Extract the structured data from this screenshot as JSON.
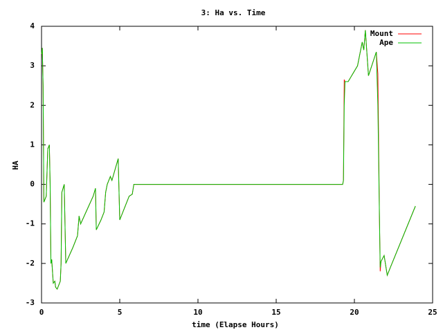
{
  "chart_data": {
    "type": "line",
    "title": "3: Ha vs. Time",
    "x_label": "time (Elapse Hours)",
    "y_label": "HA",
    "x": [
      0,
      0.05,
      0.1,
      0.15,
      0.3,
      0.4,
      0.5,
      0.55,
      0.6,
      0.65,
      0.75,
      0.85,
      0.9,
      1.0,
      1.2,
      1.25,
      1.3,
      1.45,
      1.55,
      2.0,
      2.3,
      2.4,
      2.5,
      3.3,
      3.45,
      3.5,
      3.8,
      4.0,
      4.1,
      4.2,
      4.4,
      4.5,
      4.9,
      5.0,
      5.2,
      5.6,
      5.8,
      5.9,
      19.25,
      19.3,
      19.35,
      19.4,
      19.6,
      20.2,
      20.5,
      20.6,
      20.7,
      20.9,
      21.4,
      21.5,
      21.6,
      21.65,
      21.7,
      21.9,
      22.1,
      22.3,
      23.9
    ],
    "series": [
      {
        "name": "Mount",
        "color": "#ff0000",
        "values": [
          3.3,
          3.45,
          2.5,
          -0.45,
          -0.3,
          0.9,
          1.0,
          0,
          -2.0,
          -1.9,
          -2.5,
          -2.45,
          -2.6,
          -2.65,
          -2.45,
          -2.0,
          -0.2,
          0,
          -2.0,
          -1.6,
          -1.3,
          -0.8,
          -1.0,
          -0.3,
          -0.1,
          -1.15,
          -0.9,
          -0.7,
          -0.2,
          0,
          0.2,
          0.1,
          0.65,
          -0.9,
          -0.7,
          -0.3,
          -0.25,
          0,
          0,
          0.1,
          2.65,
          2.6,
          2.6,
          3.0,
          3.6,
          3.4,
          3.9,
          2.75,
          3.35,
          2.8,
          -0.8,
          -2.2,
          -1.95,
          -1.8,
          -2.3,
          -2.1,
          -0.55
        ]
      },
      {
        "name": "Ape",
        "color": "#00c000",
        "values": [
          3.3,
          3.45,
          2.5,
          -0.45,
          -0.3,
          0.9,
          1.0,
          0,
          -2.0,
          -1.9,
          -2.5,
          -2.45,
          -2.6,
          -2.65,
          -2.45,
          -2.0,
          -0.2,
          0,
          -2.0,
          -1.6,
          -1.3,
          -0.8,
          -1.0,
          -0.3,
          -0.1,
          -1.15,
          -0.9,
          -0.7,
          -0.2,
          0,
          0.2,
          0.1,
          0.65,
          -0.9,
          -0.7,
          -0.3,
          -0.25,
          0,
          0,
          0.1,
          2.0,
          2.6,
          2.6,
          3.0,
          3.6,
          3.4,
          3.9,
          2.75,
          3.35,
          2.0,
          -0.8,
          -2.1,
          -1.95,
          -1.8,
          -2.3,
          -2.1,
          -0.55
        ]
      }
    ],
    "xlim": [
      0,
      25
    ],
    "xticks": [
      0,
      5,
      10,
      15,
      20,
      25
    ],
    "ylim": [
      -3,
      4
    ],
    "yticks": [
      -3,
      -2,
      -1,
      0,
      1,
      2,
      3,
      4
    ],
    "legend": "top-right"
  }
}
